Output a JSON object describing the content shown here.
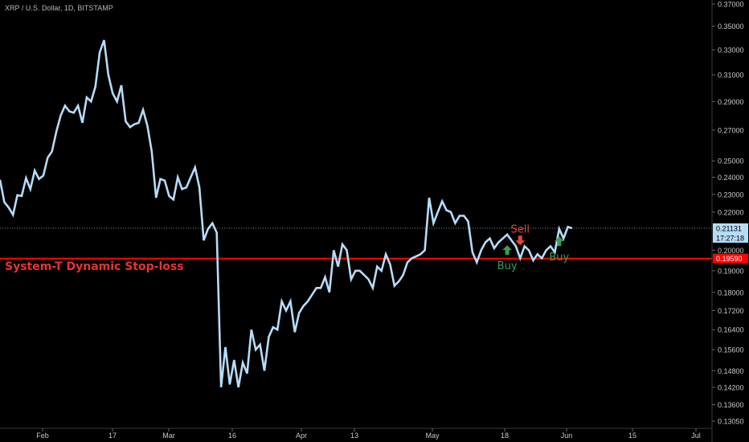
{
  "header": {
    "title": "XRP / U.S. Dollar, 1D, BITSTAMP"
  },
  "annotation": {
    "stop_loss_label": "System-T Dynamic Stop-loss"
  },
  "colors": {
    "background": "#000000",
    "price_line": "#b6dcf8",
    "stop_line": "#ff0000",
    "buy": "#3d9a5a",
    "sell": "#e0463c",
    "axis_text": "#c8c8c8"
  },
  "chart_data": {
    "type": "line",
    "title": "XRP / U.S. Dollar, 1D, BITSTAMP",
    "y_scale": "log",
    "ylim": [
      0.1295,
      0.372
    ],
    "y_ticks": [
      "0.37000",
      "0.35000",
      "0.33000",
      "0.31000",
      "0.29000",
      "0.27000",
      "0.25000",
      "0.24000",
      "0.23000",
      "0.22000",
      "0.20000",
      "0.19000",
      "0.18000",
      "0.17200",
      "0.16400",
      "0.15600",
      "0.14800",
      "0.14200",
      "0.13600",
      "0.13050"
    ],
    "x_ticks": [
      "Feb",
      "17",
      "Mar",
      "16",
      "Apr",
      "13",
      "May",
      "18",
      "Jun",
      "15",
      "Jul"
    ],
    "series": [
      {
        "values": [
          0.2385,
          0.2255,
          0.2225,
          0.2185,
          0.2295,
          0.229,
          0.2395,
          0.233,
          0.244,
          0.239,
          0.241,
          0.252,
          0.256,
          0.269,
          0.28,
          0.287,
          0.283,
          0.282,
          0.287,
          0.275,
          0.293,
          0.29,
          0.301,
          0.328,
          0.338,
          0.31,
          0.296,
          0.29,
          0.302,
          0.276,
          0.272,
          0.274,
          0.275,
          0.284,
          0.273,
          0.256,
          0.228,
          0.239,
          0.238,
          0.229,
          0.227,
          0.24,
          0.233,
          0.234,
          0.24,
          0.246,
          0.234,
          0.205,
          0.211,
          0.214,
          0.209,
          0.142,
          0.157,
          0.143,
          0.152,
          0.142,
          0.151,
          0.147,
          0.164,
          0.156,
          0.158,
          0.148,
          0.161,
          0.165,
          0.164,
          0.176,
          0.172,
          0.176,
          0.163,
          0.171,
          0.174,
          0.176,
          0.179,
          0.182,
          0.182,
          0.187,
          0.18,
          0.2,
          0.192,
          0.203,
          0.2,
          0.186,
          0.19,
          0.19,
          0.188,
          0.186,
          0.182,
          0.192,
          0.19,
          0.198,
          0.193,
          0.183,
          0.185,
          0.188,
          0.194,
          0.196,
          0.197,
          0.198,
          0.2,
          0.228,
          0.214,
          0.22,
          0.226,
          0.221,
          0.22,
          0.214,
          0.218,
          0.218,
          0.215,
          0.199,
          0.194,
          0.2,
          0.204,
          0.206,
          0.201,
          0.204,
          0.206,
          0.208,
          0.205,
          0.202,
          0.196,
          0.202,
          0.2,
          0.195,
          0.198,
          0.196,
          0.2,
          0.202,
          0.199,
          0.211,
          0.206,
          0.212,
          0.2113
        ]
      }
    ],
    "stop_loss": {
      "value": 0.1959,
      "label": "0.19590"
    },
    "last_price": {
      "value": 0.21131,
      "label": "0.21131",
      "countdown": "17:27:18"
    },
    "signals": [
      {
        "type": "buy",
        "label": "Buy",
        "index": 117,
        "value": 0.2025
      },
      {
        "type": "sell",
        "label": "Sell",
        "index": 120,
        "value": 0.2045
      },
      {
        "type": "buy",
        "label": "Buy",
        "index": 129,
        "value": 0.207
      }
    ],
    "grid": false
  }
}
